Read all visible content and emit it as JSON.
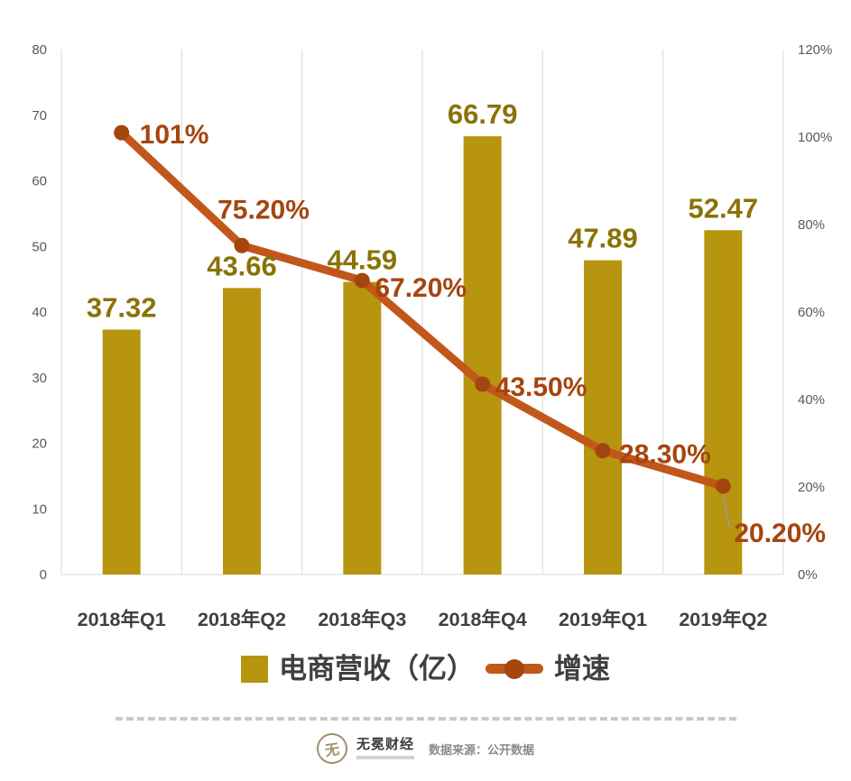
{
  "chart_data": {
    "type": "combo",
    "categories": [
      "2018年Q1",
      "2018年Q2",
      "2018年Q3",
      "2018年Q4",
      "2019年Q1",
      "2019年Q2"
    ],
    "series": [
      {
        "name": "电商营收（亿）",
        "type": "bar",
        "axis": "left",
        "values": [
          37.32,
          43.66,
          44.59,
          66.79,
          47.89,
          52.47
        ],
        "data_labels": [
          "37.32",
          "43.66",
          "44.59",
          "66.79",
          "47.89",
          "52.47"
        ]
      },
      {
        "name": "增速",
        "type": "line",
        "axis": "right",
        "values": [
          101,
          75.2,
          67.2,
          43.5,
          28.3,
          20.2
        ],
        "data_labels": [
          "101%",
          "75.20%",
          "67.20%",
          "43.50%",
          "28.30%",
          "20.20%"
        ]
      }
    ],
    "left_axis": {
      "min": 0,
      "max": 80,
      "ticks": [
        0,
        10,
        20,
        30,
        40,
        50,
        60,
        70,
        80
      ]
    },
    "right_axis": {
      "min": 0,
      "max": 120,
      "ticks": [
        0,
        20,
        40,
        60,
        80,
        100,
        120
      ],
      "tick_labels": [
        "0%",
        "20%",
        "40%",
        "60%",
        "80%",
        "100%",
        "120%"
      ]
    },
    "grid": "vertical-only",
    "legend_position": "bottom",
    "title": ""
  },
  "colors": {
    "bar": "#B7950F",
    "bar_label": "#8A7206",
    "line": "#C2571B",
    "marker": "#A5450E",
    "line_label": "#A5450E",
    "axis_text": "#595959",
    "category_text": "#404040",
    "grid": "#D9D9D9",
    "legend_text": "#3F3F3F",
    "leader_line": "#999999"
  },
  "legend": {
    "bar_label": "电商营收（亿）",
    "line_label": "增速"
  },
  "footer": {
    "logo_char": "无",
    "logo_text": "无冕财经",
    "source": "数据来源：公开数据"
  }
}
